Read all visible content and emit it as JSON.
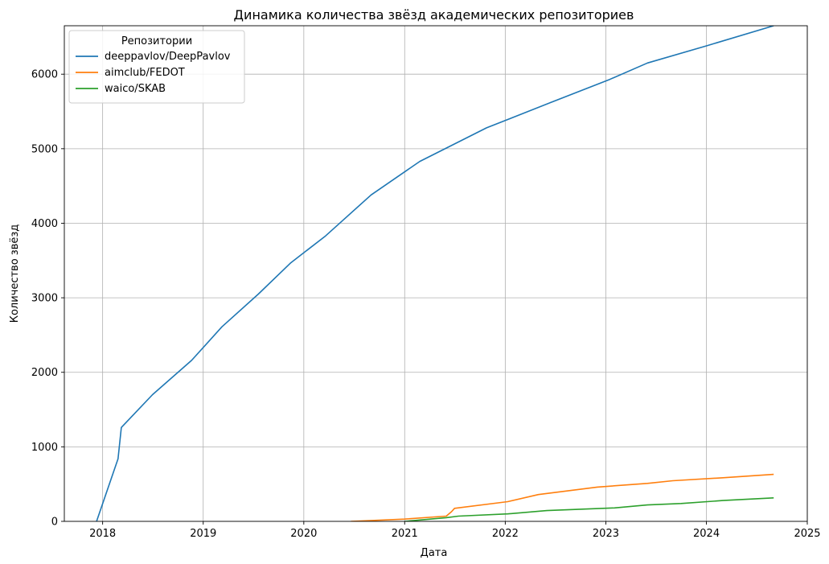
{
  "chart_data": {
    "type": "line",
    "title": "Динамика количества звёзд академических репозиториев",
    "xlabel": "Дата",
    "ylabel": "Количество звёзд",
    "xlim": [
      "2017-08-15",
      "2025-01-01"
    ],
    "ylim": [
      0,
      6650
    ],
    "x_ticks": [
      "2018",
      "2019",
      "2020",
      "2021",
      "2022",
      "2023",
      "2024",
      "2025"
    ],
    "y_ticks": [
      0,
      1000,
      2000,
      3000,
      4000,
      5000,
      6000
    ],
    "grid": true,
    "legend": {
      "title": "Репозитории",
      "position": "top-left"
    },
    "series": [
      {
        "name": "deeppavlov/DeepPavlov",
        "color": "#1f77b4",
        "points": [
          [
            "2017-12-10",
            0
          ],
          [
            "2018-02-26",
            840
          ],
          [
            "2018-03-10",
            1260
          ],
          [
            "2018-07-01",
            1700
          ],
          [
            "2018-11-20",
            2160
          ],
          [
            "2019-03-10",
            2610
          ],
          [
            "2019-07-20",
            3050
          ],
          [
            "2019-11-15",
            3470
          ],
          [
            "2020-03-20",
            3830
          ],
          [
            "2020-09-01",
            4380
          ],
          [
            "2021-02-25",
            4830
          ],
          [
            "2021-10-25",
            5280
          ],
          [
            "2022-06-15",
            5620
          ],
          [
            "2023-01-15",
            5930
          ],
          [
            "2023-06-01",
            6150
          ],
          [
            "2024-01-01",
            6380
          ],
          [
            "2024-09-01",
            6650
          ]
        ]
      },
      {
        "name": "aimclub/FEDOT",
        "color": "#ff7f0e",
        "points": [
          [
            "2020-06-20",
            0
          ],
          [
            "2021-01-01",
            30
          ],
          [
            "2021-06-01",
            70
          ],
          [
            "2021-06-20",
            130
          ],
          [
            "2021-07-01",
            175
          ],
          [
            "2022-01-10",
            265
          ],
          [
            "2022-05-01",
            360
          ],
          [
            "2022-12-01",
            460
          ],
          [
            "2023-06-01",
            510
          ],
          [
            "2023-09-01",
            545
          ],
          [
            "2024-03-01",
            585
          ],
          [
            "2024-09-01",
            630
          ]
        ]
      },
      {
        "name": "waico/SKAB",
        "color": "#2ca02c",
        "points": [
          [
            "2021-01-01",
            0
          ],
          [
            "2021-06-01",
            50
          ],
          [
            "2021-07-15",
            70
          ],
          [
            "2022-01-10",
            100
          ],
          [
            "2022-06-01",
            145
          ],
          [
            "2023-02-01",
            180
          ],
          [
            "2023-06-01",
            220
          ],
          [
            "2023-10-01",
            240
          ],
          [
            "2024-03-01",
            280
          ],
          [
            "2024-09-01",
            315
          ]
        ]
      }
    ]
  }
}
